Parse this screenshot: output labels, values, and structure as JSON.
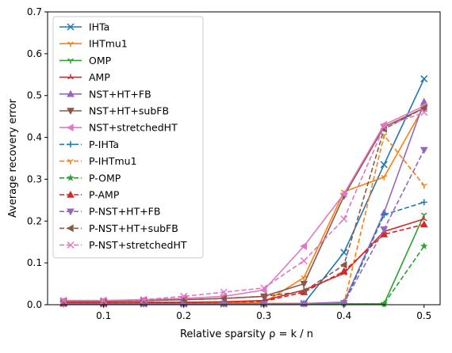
{
  "chart_data": {
    "type": "line",
    "title": "",
    "xlabel": "Relative sparsity ρ = k / n",
    "ylabel": "Average recovery error",
    "xlim": [
      0.03,
      0.52
    ],
    "ylim": [
      0,
      0.7
    ],
    "xticks": [
      0.1,
      0.2,
      0.3,
      0.4,
      0.5
    ],
    "xtick_labels": [
      "0.1",
      "0.2",
      "0.3",
      "0.4",
      "0.5"
    ],
    "yticks": [
      0,
      0.1,
      0.2,
      0.3,
      0.4,
      0.5,
      0.6,
      0.7
    ],
    "ytick_labels": [
      "0.0",
      "0.1",
      "0.2",
      "0.3",
      "0.4",
      "0.5",
      "0.6",
      "0.7"
    ],
    "grid": false,
    "legend_position": "top-left",
    "x": [
      0.05,
      0.1,
      0.15,
      0.2,
      0.25,
      0.3,
      0.35,
      0.4,
      0.45,
      0.5
    ],
    "series": [
      {
        "name": "IHTa",
        "color": "#1f77b4",
        "dash": "solid",
        "marker": "x",
        "values": [
          0.003,
          0.002,
          0.002,
          0.002,
          0.002,
          0.002,
          0.003,
          0.125,
          0.335,
          0.54
        ]
      },
      {
        "name": "IHTmu1",
        "color": "#ff7f0e",
        "dash": "solid",
        "marker": "tri_down",
        "values": [
          0.005,
          0.005,
          0.005,
          0.005,
          0.005,
          0.005,
          0.065,
          0.27,
          0.305,
          0.475
        ]
      },
      {
        "name": "OMP",
        "color": "#2ca02c",
        "dash": "solid",
        "marker": "tri_down",
        "values": [
          0.002,
          0.002,
          0.002,
          0.002,
          0.002,
          0.002,
          0.002,
          0.002,
          0.002,
          0.215
        ]
      },
      {
        "name": "AMP",
        "color": "#d62728",
        "dash": "solid",
        "marker": "tri_up",
        "values": [
          0.005,
          0.005,
          0.006,
          0.006,
          0.007,
          0.01,
          0.035,
          0.075,
          0.175,
          0.205
        ]
      },
      {
        "name": "NST+HT+FB",
        "color": "#9467bd",
        "dash": "solid",
        "marker": "triangle_up",
        "values": [
          0.003,
          0.003,
          0.003,
          0.003,
          0.003,
          0.003,
          0.003,
          0.006,
          0.22,
          0.485
        ]
      },
      {
        "name": "NST+HT+subFB",
        "color": "#8c564b",
        "dash": "solid",
        "marker": "triangle_down",
        "values": [
          0.008,
          0.008,
          0.01,
          0.012,
          0.015,
          0.02,
          0.05,
          0.26,
          0.425,
          0.47
        ]
      },
      {
        "name": "NST+stretchedHT",
        "color": "#e377c2",
        "dash": "solid",
        "marker": "triangle_left",
        "values": [
          0.01,
          0.01,
          0.012,
          0.015,
          0.02,
          0.035,
          0.14,
          0.265,
          0.43,
          0.475
        ]
      },
      {
        "name": "P-IHTa",
        "color": "#1f77b4",
        "dash": "dashed",
        "marker": "plus",
        "values": [
          0.002,
          0.002,
          0.002,
          0.002,
          0.002,
          0.002,
          0.002,
          0.002,
          0.215,
          0.245
        ]
      },
      {
        "name": "P-IHTmu1",
        "color": "#ff7f0e",
        "dash": "dashed",
        "marker": "tri_down",
        "values": [
          0.003,
          0.003,
          0.003,
          0.003,
          0.003,
          0.003,
          0.003,
          0.003,
          0.405,
          0.285
        ]
      },
      {
        "name": "P-OMP",
        "color": "#2ca02c",
        "dash": "dashed",
        "marker": "star",
        "values": [
          0.002,
          0.002,
          0.002,
          0.002,
          0.002,
          0.002,
          0.002,
          0.002,
          0.002,
          0.14
        ]
      },
      {
        "name": "P-AMP",
        "color": "#d62728",
        "dash": "dashed",
        "marker": "triangle_up",
        "values": [
          0.004,
          0.004,
          0.005,
          0.005,
          0.006,
          0.008,
          0.03,
          0.08,
          0.168,
          0.192
        ]
      },
      {
        "name": "P-NST+HT+FB",
        "color": "#9467bd",
        "dash": "dashed",
        "marker": "triangle_down",
        "values": [
          0.002,
          0.002,
          0.002,
          0.002,
          0.002,
          0.002,
          0.002,
          0.004,
          0.18,
          0.37
        ]
      },
      {
        "name": "P-NST+HT+subFB",
        "color": "#8c564b",
        "dash": "dashed",
        "marker": "triangle_left",
        "values": [
          0.008,
          0.008,
          0.01,
          0.012,
          0.015,
          0.02,
          0.032,
          0.095,
          0.42,
          0.47
        ]
      },
      {
        "name": "P-NST+stretchedHT",
        "color": "#e377c2",
        "dash": "dashed",
        "marker": "x",
        "values": [
          0.01,
          0.01,
          0.012,
          0.02,
          0.03,
          0.04,
          0.105,
          0.205,
          0.425,
          0.46
        ]
      }
    ]
  }
}
